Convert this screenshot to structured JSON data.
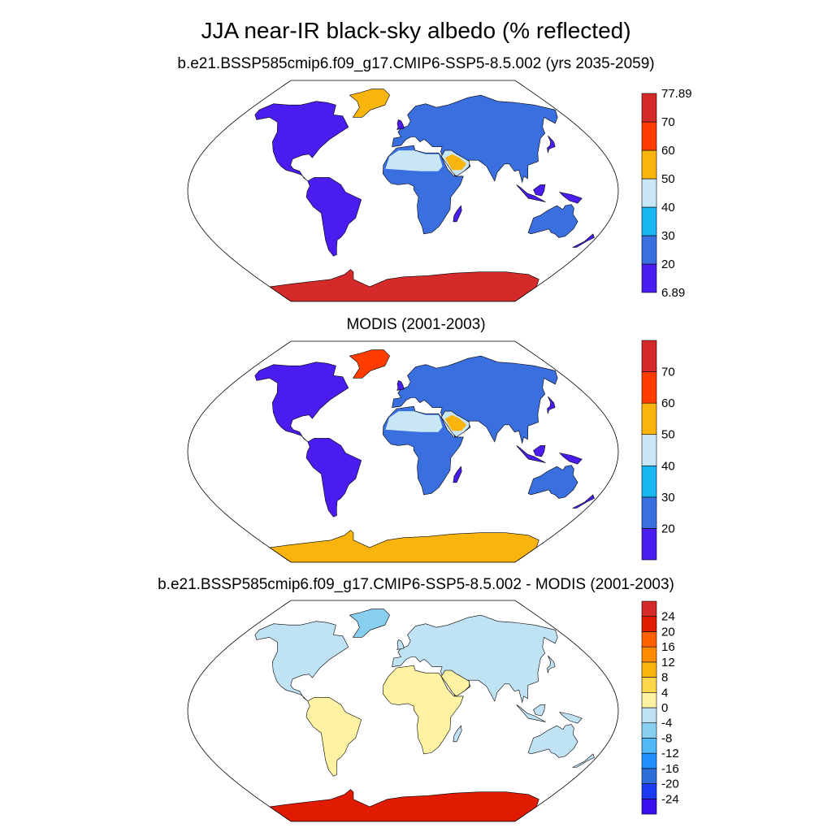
{
  "title": "JJA near-IR black-sky albedo (% reflected)",
  "panels": [
    {
      "subtitle": "b.e21.BSSP585cmip6.f09_g17.CMIP6-SSP5-8.5.002 (yrs 2035-2059)",
      "colorbar": {
        "colors": [
          "#4b1cf0",
          "#3a6fe0",
          "#18b7f2",
          "#c9e6f7",
          "#f9b50d",
          "#ff3d00",
          "#d42a2a"
        ],
        "labels": [
          "6.89",
          "20",
          "30",
          "40",
          "50",
          "60",
          "70",
          "77.89"
        ],
        "label_mode": "edges"
      }
    },
    {
      "subtitle": "MODIS (2001-2003)",
      "colorbar": {
        "colors": [
          "#4b1cf0",
          "#3a6fe0",
          "#18b7f2",
          "#c9e6f7",
          "#f9b50d",
          "#ff3d00",
          "#d42a2a"
        ],
        "labels": [
          "20",
          "30",
          "40",
          "50",
          "60",
          "70"
        ],
        "label_mode": "interior"
      }
    },
    {
      "subtitle": "b.e21.BSSP585cmip6.f09_g17.CMIP6-SSP5-8.5.002 - MODIS (2001-2003)",
      "colorbar": {
        "colors": [
          "#3a0ff0",
          "#1e3cf5",
          "#2d6ed8",
          "#1e90ff",
          "#4fb8f5",
          "#87ceef",
          "#bfe2f5",
          "#fff3a3",
          "#fcd74a",
          "#f9b50d",
          "#ff8c00",
          "#ff6000",
          "#e01b00",
          "#d42a2a"
        ],
        "labels": [
          "-24",
          "-20",
          "-16",
          "-12",
          "-8",
          "-4",
          "0",
          "4",
          "8",
          "12",
          "16",
          "20",
          "24"
        ],
        "label_mode": "interior"
      }
    }
  ]
}
